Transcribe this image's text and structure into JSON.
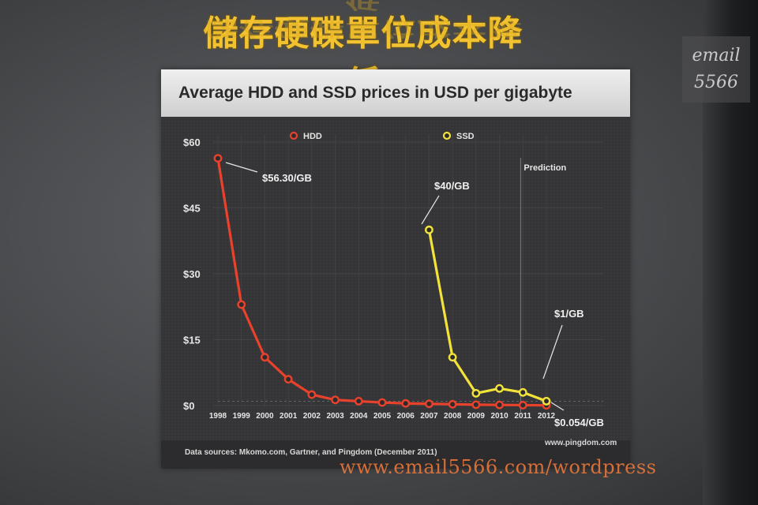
{
  "heading": "儲存硬碟單位成本降低",
  "badge_line1": "email",
  "badge_line2": "5566",
  "watermark": "www.email5566.com/wordpress",
  "slide": {
    "source": "Data sources: Mkomo.com, Gartner, and Pingdom (December 2011)",
    "credit": "www.pingdom.com"
  },
  "chart_data": {
    "type": "line",
    "title": "Average HDD and SSD prices in USD per gigabyte",
    "legend_position": "top",
    "x": [
      "1998",
      "1999",
      "2000",
      "2001",
      "2002",
      "2003",
      "2004",
      "2005",
      "2006",
      "2007",
      "2008",
      "2009",
      "2010",
      "2011",
      "2012"
    ],
    "ylim": [
      0,
      60
    ],
    "yticks": [
      "$0",
      "$15",
      "$30",
      "$45",
      "$60"
    ],
    "ytick_values": [
      0,
      15,
      30,
      45,
      60
    ],
    "prediction_label": "Prediction",
    "prediction_start": "2011",
    "series": [
      {
        "name": "HDD",
        "color": "#e8422c",
        "x": [
          "1998",
          "1999",
          "2000",
          "2001",
          "2002",
          "2003",
          "2004",
          "2005",
          "2006",
          "2007",
          "2008",
          "2009",
          "2010",
          "2011",
          "2012"
        ],
        "values": [
          56.3,
          23,
          11,
          6,
          2.5,
          1.3,
          1.0,
          0.7,
          0.5,
          0.4,
          0.3,
          0.2,
          0.15,
          0.1,
          0.054
        ]
      },
      {
        "name": "SSD",
        "color": "#f2e23a",
        "x": [
          "2007",
          "2008",
          "2009",
          "2010",
          "2011",
          "2012"
        ],
        "values": [
          40,
          11,
          2.8,
          3.9,
          3.0,
          1.0
        ]
      }
    ],
    "annotations": [
      {
        "text": "$56.30/GB",
        "series": 0,
        "index": 0
      },
      {
        "text": "$40/GB",
        "series": 1,
        "index": 0
      },
      {
        "text": "$1/GB",
        "series": 1,
        "index": 5
      },
      {
        "text": "$0.054/GB",
        "series": 0,
        "index": 14
      }
    ]
  }
}
